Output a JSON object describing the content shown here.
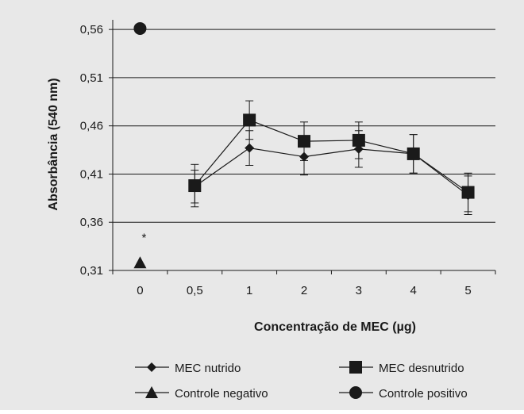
{
  "chart_data": {
    "type": "line",
    "title": "",
    "xlabel": "Concentração de MEC (µg)",
    "ylabel": "Absorbância (540 nm)",
    "categories": [
      "0",
      "0,5",
      "1",
      "2",
      "3",
      "4",
      "5"
    ],
    "y_ticks": [
      "0,31",
      "0,36",
      "0,41",
      "0,46",
      "0,51",
      "0,56"
    ],
    "ylim": [
      0.31,
      0.56
    ],
    "grid": "horizontal",
    "legend_position": "bottom",
    "series": [
      {
        "name": "MEC nutrido",
        "marker": "diamond",
        "values": [
          null,
          0.397,
          0.437,
          0.428,
          0.436,
          0.431,
          0.388
        ],
        "error": [
          null,
          0.017,
          0.018,
          0.019,
          0.019,
          0.02,
          0.02
        ]
      },
      {
        "name": "MEC desnutrido",
        "marker": "square",
        "values": [
          null,
          0.398,
          0.466,
          0.444,
          0.445,
          0.431,
          0.391
        ],
        "error": [
          null,
          0.022,
          0.02,
          0.02,
          0.019,
          0.02,
          0.02
        ]
      },
      {
        "name": "Controle negativo",
        "marker": "triangle",
        "values": [
          0.318,
          null,
          null,
          null,
          null,
          null,
          null
        ],
        "error": [
          null,
          null,
          null,
          null,
          null,
          null,
          null
        ]
      },
      {
        "name": "Controle positivo",
        "marker": "circle",
        "values": [
          0.561,
          null,
          null,
          null,
          null,
          null,
          null
        ],
        "error": [
          null,
          null,
          null,
          null,
          null,
          null,
          null
        ]
      }
    ],
    "annotations": [
      {
        "text": "*",
        "category": "0",
        "y": 0.345
      }
    ],
    "colors": {
      "background": "#e8e8e8",
      "ink": "#1a1a1a",
      "grid": "#1a1a1a"
    }
  }
}
